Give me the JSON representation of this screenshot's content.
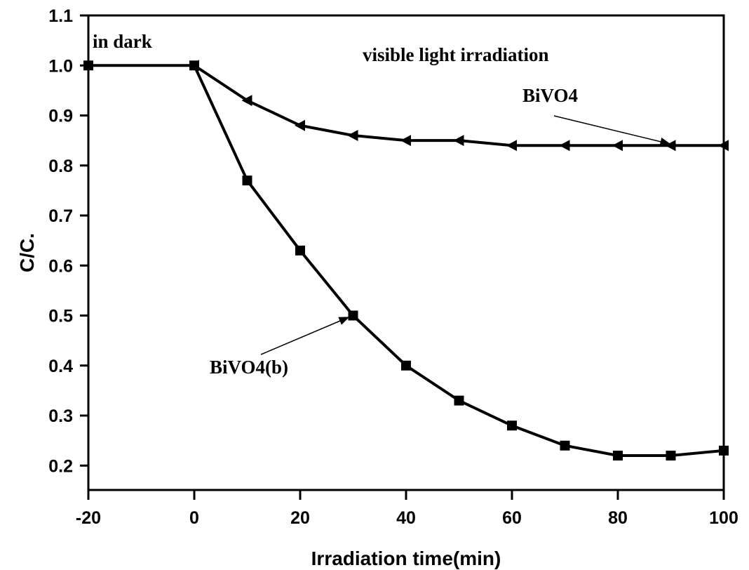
{
  "chart_data": {
    "type": "line",
    "title": "",
    "xlabel": "Irradiation time(min)",
    "ylabel": "C/C.",
    "xlim": [
      -20,
      100
    ],
    "ylim": [
      0.15,
      1.1
    ],
    "xticks": [
      -20,
      0,
      20,
      40,
      60,
      80,
      100
    ],
    "xtick_labels": [
      "-20",
      "0",
      "20",
      "40",
      "60",
      "80",
      "100"
    ],
    "yticks": [
      0.2,
      0.3,
      0.4,
      0.5,
      0.6,
      0.7,
      0.8,
      0.9,
      1.0,
      1.1
    ],
    "ytick_labels": [
      "0.2",
      "0.3",
      "0.4",
      "0.5",
      "0.6",
      "0.7",
      "0.8",
      "0.9",
      "1.0",
      "1.1"
    ],
    "grid": false,
    "series": [
      {
        "name": "BiVO4(b)",
        "marker": "square",
        "x": [
          -20,
          0,
          10,
          20,
          30,
          40,
          50,
          60,
          70,
          80,
          90,
          100
        ],
        "y": [
          1.0,
          1.0,
          0.77,
          0.63,
          0.5,
          0.4,
          0.33,
          0.28,
          0.24,
          0.22,
          0.22,
          0.23
        ]
      },
      {
        "name": "BiVO4",
        "marker": "triangle-left",
        "x": [
          0,
          10,
          20,
          30,
          40,
          50,
          60,
          70,
          80,
          90,
          100
        ],
        "y": [
          1.0,
          0.93,
          0.88,
          0.86,
          0.85,
          0.85,
          0.84,
          0.84,
          0.84,
          0.84,
          0.84
        ]
      }
    ],
    "annotations": {
      "dark": "in dark",
      "light": "visible light irradiation",
      "label_a": "BiVO4",
      "label_b": "BiVO4(b)"
    }
  }
}
